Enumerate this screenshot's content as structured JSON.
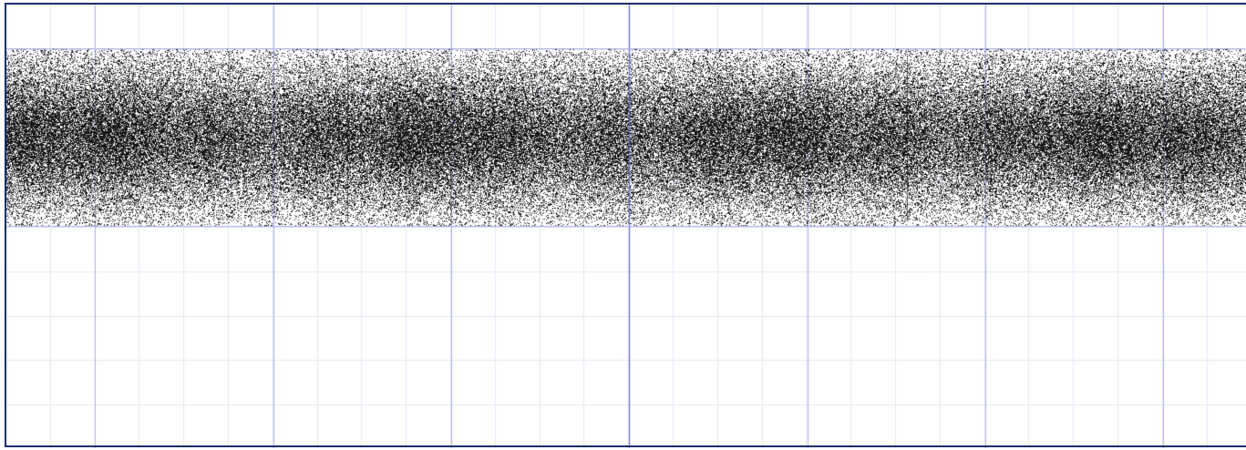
{
  "display": {
    "background_color": "#ffffff",
    "frame_color": "#1a2e6b",
    "major_grid_color": "#aab0e8",
    "minor_grid_color": "#e4e6f8",
    "center_line_color": "#6470c8",
    "trace_color": "#000000",
    "horizontal_divisions": 14,
    "vertical_divisions": 4,
    "minor_subdivisions": 2,
    "trace_band": "top half",
    "trace_style": "dense noise band, darkest at center",
    "zoom": "",
    "status": ""
  }
}
